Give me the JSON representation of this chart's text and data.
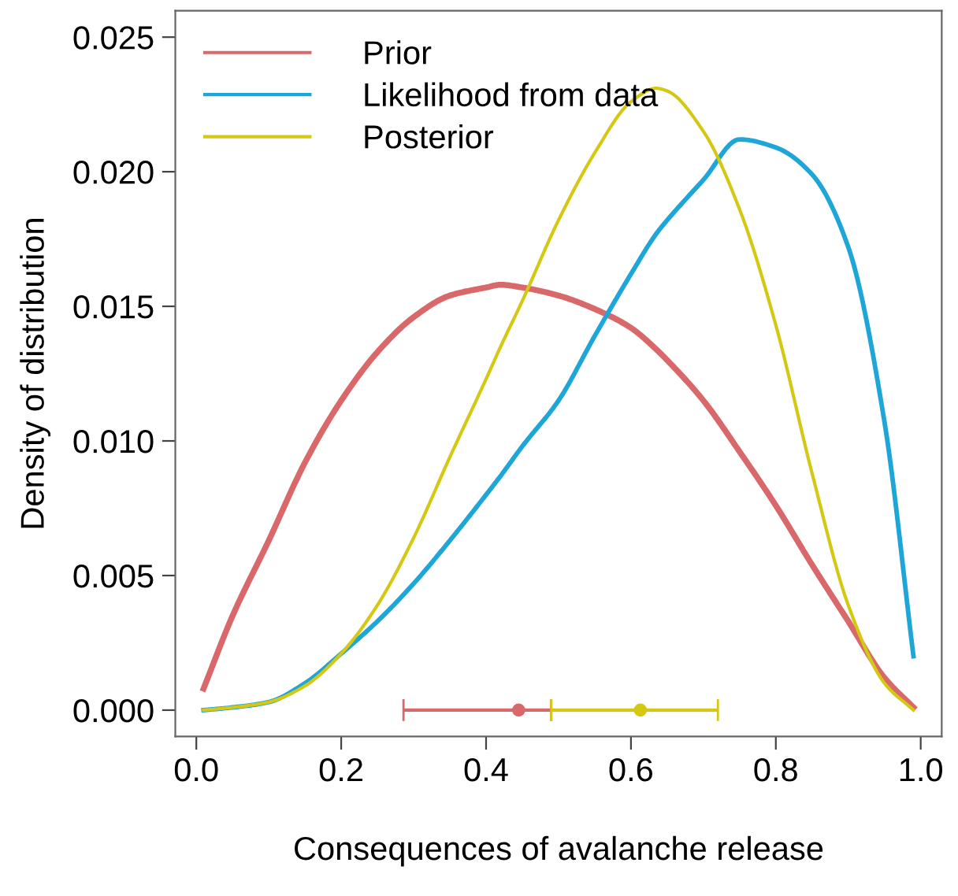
{
  "chart_data": {
    "type": "line",
    "xlabel": "Consequences of avalanche release",
    "ylabel": "Density of distribution",
    "x": [
      0.01,
      0.05,
      0.1,
      0.15,
      0.2,
      0.25,
      0.3,
      0.35,
      0.4,
      0.42,
      0.45,
      0.5,
      0.55,
      0.6,
      0.635,
      0.65,
      0.7,
      0.75,
      0.8,
      0.85,
      0.9,
      0.95,
      0.99
    ],
    "series": [
      {
        "name": "Prior",
        "color": "#d9686a",
        "values": [
          0.0008,
          0.0035,
          0.0063,
          0.0092,
          0.0115,
          0.0133,
          0.0146,
          0.0154,
          0.0157,
          0.0158,
          0.0157,
          0.0154,
          0.0149,
          0.0142,
          0.0134,
          0.013,
          0.0115,
          0.0096,
          0.0076,
          0.0054,
          0.0033,
          0.0012,
          0.0001
        ]
      },
      {
        "name": "Likelihood from data",
        "color": "#1fa6d9",
        "values": [
          0.0,
          0.0001,
          0.0003,
          0.001,
          0.0021,
          0.0033,
          0.0047,
          0.0063,
          0.008,
          0.0087,
          0.0098,
          0.0115,
          0.0139,
          0.0162,
          0.0177,
          0.0182,
          0.0197,
          0.0212,
          0.0209,
          0.0199,
          0.0172,
          0.0107,
          0.002
        ]
      },
      {
        "name": "Posterior",
        "color": "#d4c813",
        "values": [
          0.0,
          0.0001,
          0.0003,
          0.0009,
          0.0021,
          0.0039,
          0.0064,
          0.0094,
          0.0123,
          0.0135,
          0.0152,
          0.0182,
          0.0207,
          0.0226,
          0.0231,
          0.023,
          0.0215,
          0.0186,
          0.0143,
          0.0088,
          0.0039,
          0.001,
          0.0
        ]
      },
      {
        "type": "scatter",
        "marker": "circle",
        "color": "#d9686a",
        "x": [
          0.445
        ],
        "values": [
          0.0
        ],
        "xerrors": [
          [
            0.286,
            0.49
          ]
        ]
      },
      {
        "type": "scatter",
        "marker": "circle",
        "color": "#d4c813",
        "x": [
          0.613
        ],
        "values": [
          0.0
        ],
        "xerrors": [
          [
            0.49,
            0.72
          ]
        ]
      }
    ],
    "xlim": [
      -0.029,
      1.029
    ],
    "ylim": [
      -0.00098,
      0.02598
    ],
    "xticks": [
      {
        "value": 0.0,
        "label": "0.0"
      },
      0.2,
      0.4,
      0.6,
      0.8,
      {
        "value": 1.0,
        "label": "1.0"
      }
    ],
    "yticks": [
      {
        "value": 0.0,
        "label": "0.000"
      },
      0.005,
      {
        "value": 0.01,
        "label": "0.010"
      },
      0.015,
      {
        "value": 0.02,
        "label": "0.020"
      },
      0.025
    ],
    "grid": false,
    "legend": "top left",
    "marker": "none",
    "line_style": "solid"
  }
}
